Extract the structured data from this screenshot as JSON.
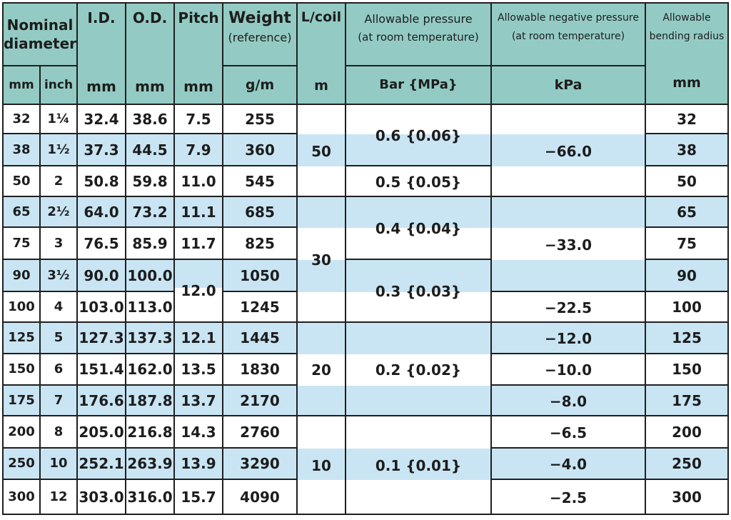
{
  "header": {
    "nominal_diameter": "Nominal diameter",
    "id": "I.D.",
    "od": "O.D.",
    "pitch": "Pitch",
    "weight": "Weight",
    "weight_sub": "(reference)",
    "l_coil": "L/coil",
    "allowable_pressure": "Allowable pressure",
    "allowable_pressure_sub": "(at room temperature)",
    "allowable_negative_pressure": "Allowable negative pressure",
    "allowable_negative_pressure_sub": "(at room temperature)",
    "allowable_bending": "Allowable",
    "allowable_bending_sub": "bending radius"
  },
  "units": {
    "mm": "mm",
    "inch": "inch",
    "id": "mm",
    "od": "mm",
    "pitch": "mm",
    "weight": "g/m",
    "l_coil": "m",
    "pressure": "Bar {MPa}",
    "negative_pressure": "kPa",
    "bending": "mm"
  },
  "rows": [
    {
      "mm": "32",
      "inch": "1¼",
      "id": "32.4",
      "od": "38.6",
      "pitch": "7.5",
      "weight": "255",
      "radius": "32"
    },
    {
      "mm": "38",
      "inch": "1½",
      "id": "37.3",
      "od": "44.5",
      "pitch": "7.9",
      "weight": "360",
      "radius": "38"
    },
    {
      "mm": "50",
      "inch": "2",
      "id": "50.8",
      "od": "59.8",
      "pitch": "11.0",
      "weight": "545",
      "radius": "50"
    },
    {
      "mm": "65",
      "inch": "2½",
      "id": "64.0",
      "od": "73.2",
      "pitch": "11.1",
      "weight": "685",
      "radius": "65"
    },
    {
      "mm": "75",
      "inch": "3",
      "id": "76.5",
      "od": "85.9",
      "pitch": "11.7",
      "weight": "825",
      "radius": "75"
    },
    {
      "mm": "90",
      "inch": "3½",
      "id": "90.0",
      "od": "100.0",
      "pitch": "",
      "weight": "1050",
      "radius": "90"
    },
    {
      "mm": "100",
      "inch": "4",
      "id": "103.0",
      "od": "113.0",
      "pitch": "",
      "weight": "1245",
      "radius": "100"
    },
    {
      "mm": "125",
      "inch": "5",
      "id": "127.3",
      "od": "137.3",
      "pitch": "12.1",
      "weight": "1445",
      "radius": "125"
    },
    {
      "mm": "150",
      "inch": "6",
      "id": "151.4",
      "od": "162.0",
      "pitch": "13.5",
      "weight": "1830",
      "radius": "150"
    },
    {
      "mm": "175",
      "inch": "7",
      "id": "176.6",
      "od": "187.8",
      "pitch": "13.7",
      "weight": "2170",
      "radius": "175"
    },
    {
      "mm": "200",
      "inch": "8",
      "id": "205.0",
      "od": "216.8",
      "pitch": "14.3",
      "weight": "2760",
      "radius": "200"
    },
    {
      "mm": "250",
      "inch": "10",
      "id": "252.1",
      "od": "263.9",
      "pitch": "13.9",
      "weight": "3290",
      "radius": "250"
    },
    {
      "mm": "300",
      "inch": "12",
      "id": "303.0",
      "od": "316.0",
      "pitch": "15.7",
      "weight": "4090",
      "radius": "300"
    }
  ],
  "merged": {
    "pitch_12": "12.0",
    "coil": [
      "50",
      "30",
      "20",
      "10"
    ],
    "pressure": [
      "0.6 {0.06}",
      "0.5 {0.05}",
      "0.4 {0.04}",
      "0.3 {0.03}",
      "0.2 {0.02}",
      "0.1 {0.01}"
    ],
    "negative": [
      "−66.0",
      "−33.0",
      "−22.5",
      "−12.0",
      "−10.0",
      "−8.0",
      "−6.5",
      "−4.0",
      "−2.5"
    ]
  },
  "colors": {
    "header": "#93cbc4",
    "stripe": "#c9e5f4",
    "border": "#1f1f1f"
  }
}
